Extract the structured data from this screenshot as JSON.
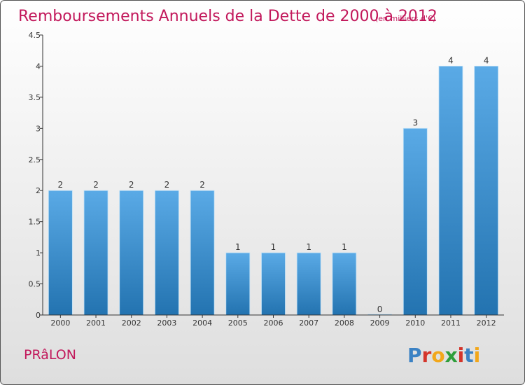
{
  "chart_data": {
    "type": "bar",
    "title": "Remboursements Annuels de la Dette de 2000 à 2012",
    "subtitle": "(en milliers d'€)",
    "categories": [
      "2000",
      "2001",
      "2002",
      "2003",
      "2004",
      "2005",
      "2006",
      "2007",
      "2008",
      "2009",
      "2010",
      "2011",
      "2012"
    ],
    "values": [
      2,
      2,
      2,
      2,
      2,
      1,
      1,
      1,
      1,
      0,
      3,
      4,
      4
    ],
    "value_labels": [
      "2",
      "2",
      "2",
      "2",
      "2",
      "1",
      "1",
      "1",
      "1",
      "0",
      "3",
      "4",
      "4"
    ],
    "ylim": [
      0,
      4.5
    ],
    "yticks": [
      0,
      0.5,
      1,
      1.5,
      2,
      2.5,
      3,
      3.5,
      4,
      4.5
    ],
    "ytick_labels": [
      "0",
      "0.5",
      "1",
      "1.5",
      "2",
      "2.5",
      "3",
      "3.5",
      "4",
      "4.5"
    ],
    "grid": false,
    "xlabel": "",
    "ylabel": ""
  },
  "footer": {
    "commune": "PRâLON",
    "brand_letters": [
      "P",
      "r",
      "o",
      "x",
      "i",
      "t",
      "i"
    ]
  },
  "colors": {
    "title": "#c2185b",
    "bar_top": "#5aaae6",
    "bar_bottom": "#2373b0",
    "axis": "#333333",
    "background_top": "#ffffff",
    "background_bottom": "#e0e0e0",
    "border": "#555555",
    "brand": [
      "#3b82c4",
      "#d4352b",
      "#f2a71b",
      "#2e9e3b",
      "#d4352b",
      "#3b82c4",
      "#f2a71b"
    ]
  }
}
